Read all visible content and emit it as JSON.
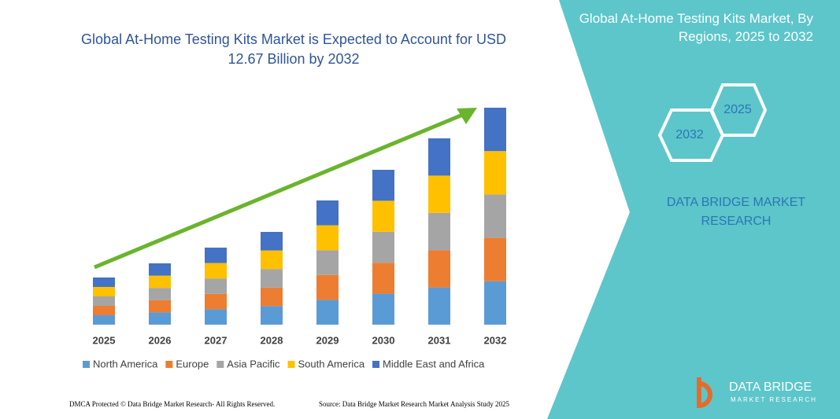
{
  "chart_data": {
    "type": "stacked_bar",
    "title": "Global At-Home Testing Kits Market is Expected to Account for USD 12.67 Billion by 2032",
    "categories": [
      "2025",
      "2026",
      "2027",
      "2028",
      "2029",
      "2030",
      "2031",
      "2032"
    ],
    "series": [
      {
        "name": "North America",
        "color": "#5b9bd5",
        "values": [
          12,
          15.6,
          19.6,
          23.6,
          31.6,
          39.4,
          47.4,
          55.2
        ]
      },
      {
        "name": "Europe",
        "color": "#ed7d31",
        "values": [
          12,
          15.6,
          19.6,
          23.6,
          31.6,
          39.4,
          47.4,
          55.2
        ]
      },
      {
        "name": "Asia Pacific",
        "color": "#a5a5a5",
        "values": [
          12,
          15.6,
          19.6,
          23.6,
          31.6,
          39.4,
          47.4,
          55.2
        ]
      },
      {
        "name": "South America",
        "color": "#ffc000",
        "values": [
          12,
          15.6,
          19.6,
          23.6,
          31.6,
          39.4,
          47.4,
          55.2
        ]
      },
      {
        "name": "Middle East and Africa",
        "color": "#4472c4",
        "values": [
          12,
          15.6,
          19.6,
          23.6,
          31.6,
          39.4,
          47.4,
          55.2
        ]
      }
    ]
  },
  "panel": {
    "title": "Global At-Home Testing Kits Market, By Regions, 2025 to 2032",
    "hex_labels": [
      "2025",
      "2032"
    ],
    "brand": "DATA BRIDGE MARKET RESEARCH",
    "logo_name": "DATA BRIDGE",
    "logo_sub": "MARKET RESEARCH"
  },
  "footer": {
    "left": "DMCA Protected © Data Bridge Market Research- All Rights Reserved.",
    "right": "Source: Data Bridge Market Research Market Analysis Study 2025"
  }
}
